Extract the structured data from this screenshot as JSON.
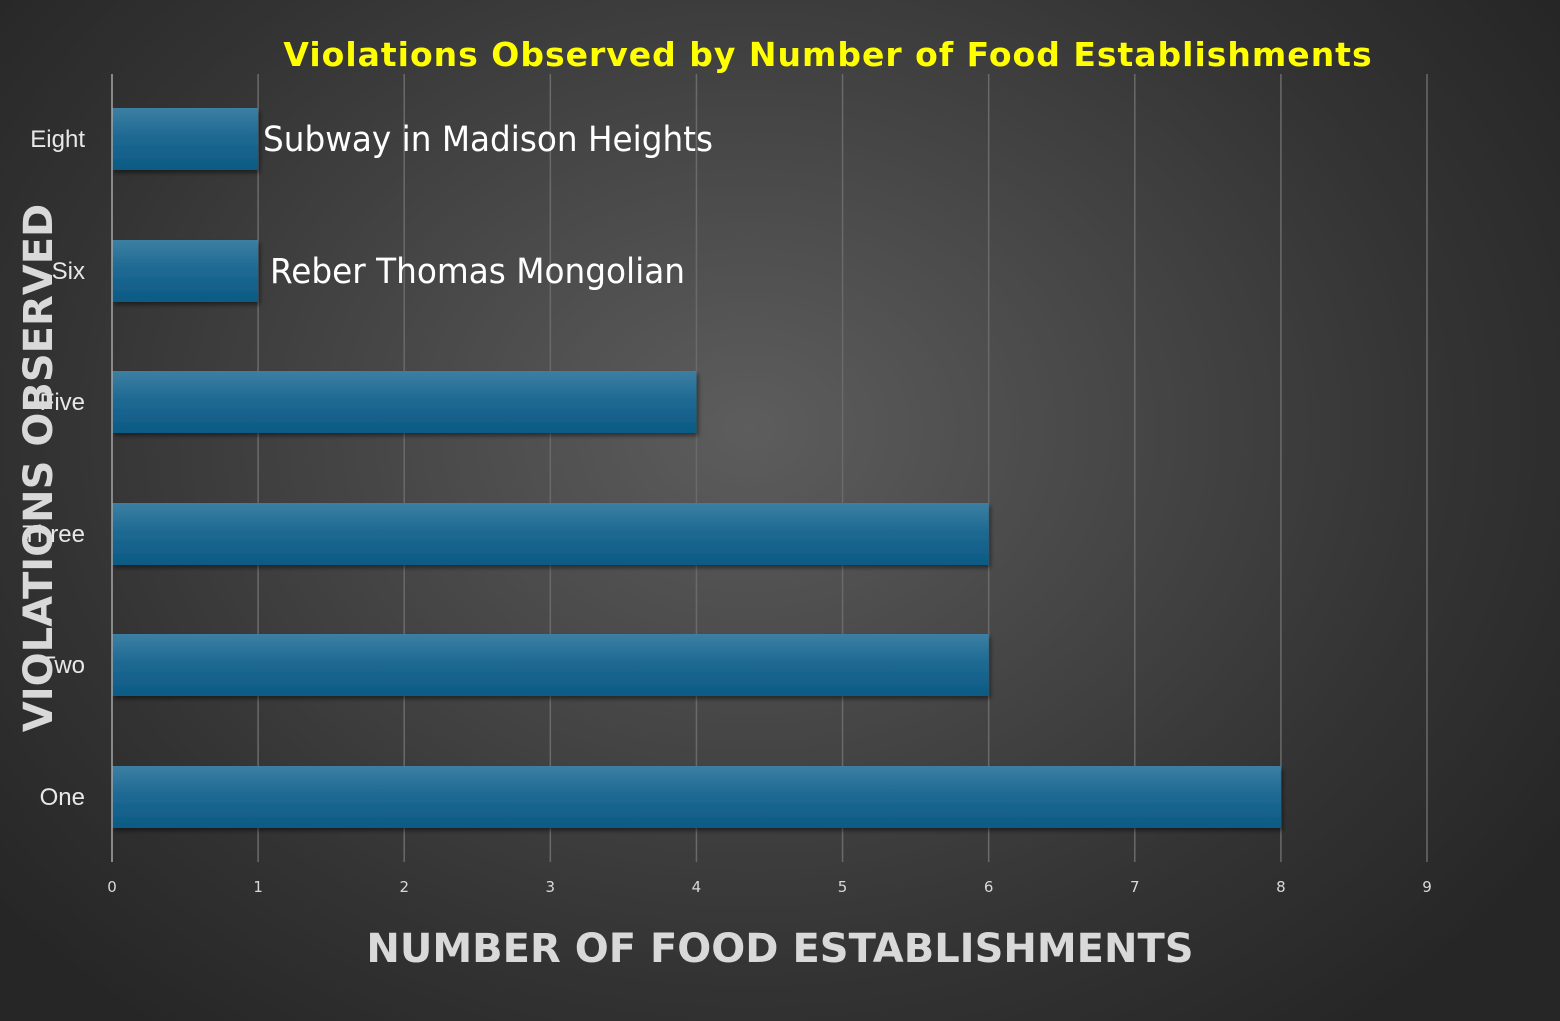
{
  "chart_data": {
    "type": "bar",
    "orientation": "horizontal",
    "title": "Violations Observed by Number of Food Establishments",
    "xlabel": "NUMBER OF FOOD ESTABLISHMENTS",
    "ylabel": "VIOLATIONS OBSERVED",
    "categories": [
      "One",
      "Two",
      "Three",
      "Five",
      "Six",
      "Eight"
    ],
    "values": [
      8,
      6,
      6,
      4,
      1,
      1
    ],
    "xlim": [
      0,
      9
    ],
    "xticks": [
      "0",
      "1",
      "2",
      "3",
      "4",
      "5",
      "6",
      "7",
      "8",
      "9"
    ],
    "grid": "vertical",
    "annotations": [
      {
        "category": "Eight",
        "text": "Subway in Madison Heights"
      },
      {
        "category": "Six",
        "text": "Reber Thomas Mongolian"
      }
    ],
    "colors": {
      "bar_top": "#3c7fa3",
      "bar_bottom": "#0b5a84",
      "title": "#ffff00",
      "text": "#d9d9d9"
    }
  }
}
